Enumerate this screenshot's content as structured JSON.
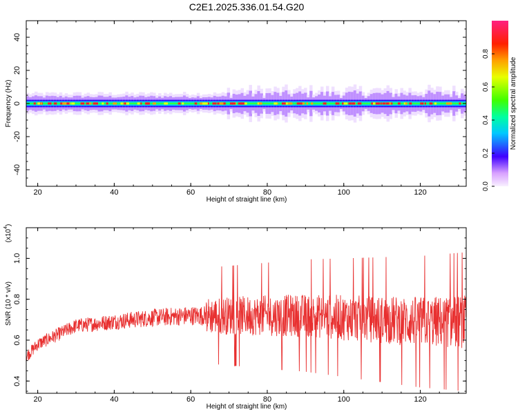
{
  "title": "C2E1.2025.336.01.54.G20",
  "chart_data": [
    {
      "type": "heatmap",
      "xlabel": "Height of straight line (km)",
      "ylabel": "Frequency (Hz)",
      "xlim": [
        17,
        132
      ],
      "ylim": [
        -50,
        50
      ],
      "xticks": [
        "20",
        "40",
        "60",
        "80",
        "100",
        "120"
      ],
      "yticks": [
        "40",
        "20",
        "0",
        "-20",
        "-40"
      ],
      "band_center_hz": 0,
      "band_halfwidth_hz": 3,
      "colorbar": {
        "label": "Normalized spectral amplitude",
        "range": [
          0,
          1
        ],
        "ticks": [
          "0.0",
          "0.2",
          "0.4",
          "0.6",
          "0.8"
        ]
      }
    },
    {
      "type": "line",
      "xlabel": "Height of straight line (km)",
      "ylabel": "SNR (10 * v/v)",
      "scale_label": "(x10",
      "scale_exp": "4",
      "scale_close": ")",
      "xlim": [
        17,
        132
      ],
      "ylim": [
        0.34,
        1.15
      ],
      "xticks": [
        "20",
        "40",
        "60",
        "80",
        "100",
        "120"
      ],
      "yticks": [
        "1.0",
        "0.8",
        "0.6",
        "0.4"
      ],
      "color": "#e83030",
      "trend": {
        "x": [
          17,
          20,
          30,
          40,
          50,
          60,
          70,
          80,
          90,
          100,
          110,
          120,
          132
        ],
        "y": [
          0.52,
          0.58,
          0.67,
          0.69,
          0.71,
          0.72,
          0.72,
          0.72,
          0.72,
          0.71,
          0.7,
          0.69,
          0.69
        ]
      }
    }
  ]
}
